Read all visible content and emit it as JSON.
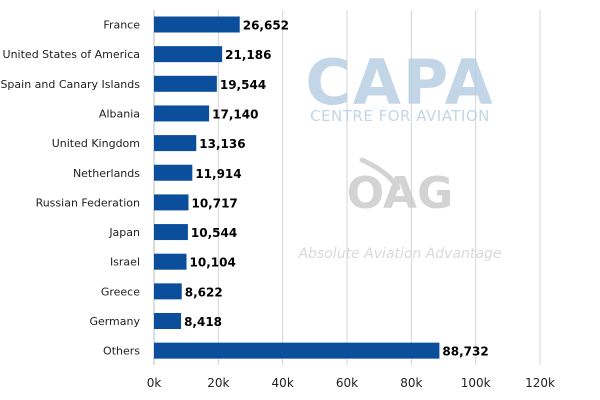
{
  "chart_data": {
    "type": "bar",
    "orientation": "horizontal",
    "categories": [
      "France",
      "United States of America",
      "Spain and Canary Islands",
      "Albania",
      "United Kingdom",
      "Netherlands",
      "Russian Federation",
      "Japan",
      "Israel",
      "Greece",
      "Germany",
      "Others"
    ],
    "values": [
      26652,
      21186,
      19544,
      17140,
      13136,
      11914,
      10717,
      10544,
      10104,
      8622,
      8418,
      88732
    ],
    "value_labels": [
      "26,652",
      "21,186",
      "19,544",
      "17,140",
      "13,136",
      "11,914",
      "10,717",
      "10,544",
      "10,104",
      "8,622",
      "8,418",
      "88,732"
    ],
    "xlim": [
      0,
      120000
    ],
    "x_ticks": [
      0,
      20000,
      40000,
      60000,
      80000,
      100000,
      120000
    ],
    "x_tick_labels": [
      "0k",
      "20k",
      "40k",
      "60k",
      "80k",
      "100k",
      "120k"
    ],
    "grid": "vertical",
    "bar_color": "#0b4f9c",
    "title": "",
    "xlabel": "",
    "ylabel": ""
  },
  "watermarks": {
    "capa_logo": "CAPA",
    "capa_subtitle": "CENTRE FOR AVIATION",
    "oag_logo": "OAG",
    "oag_tagline": "Absolute Aviation Advantage",
    "color": "#b8cfe3"
  }
}
